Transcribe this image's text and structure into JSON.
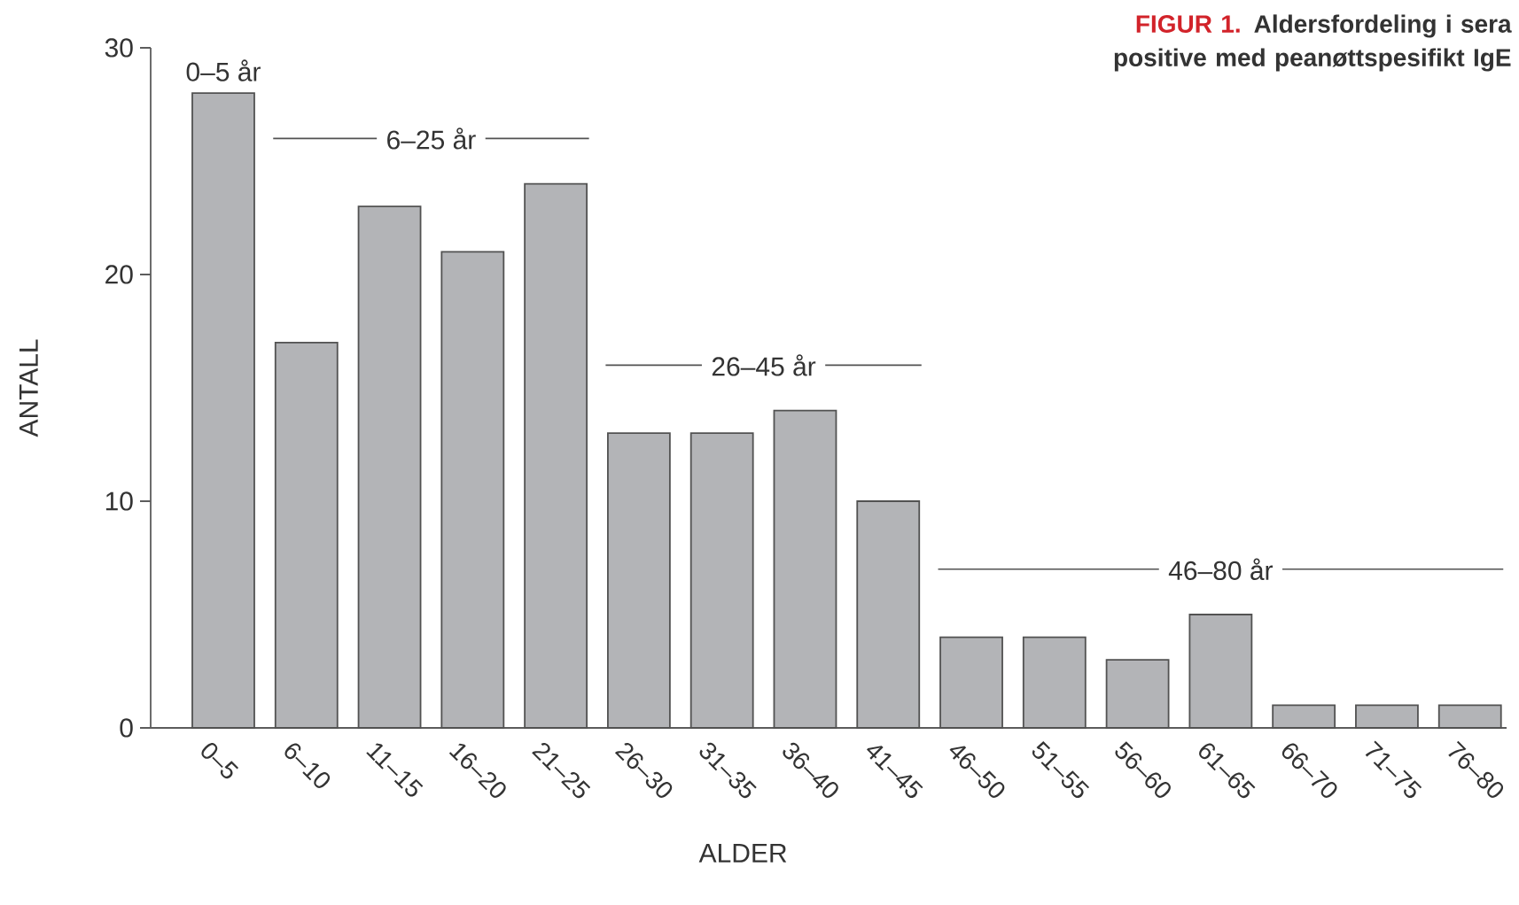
{
  "chart_data": {
    "type": "bar",
    "title": "FIGUR 1.",
    "subtitle": "Aldersfordeling i sera positive med peanøttspesifikt IgE",
    "xlabel": "ALDER",
    "ylabel": "ANTALL",
    "categories": [
      "0–5",
      "6–10",
      "11–15",
      "16–20",
      "21–25",
      "26–30",
      "31–35",
      "36–40",
      "41–45",
      "46–50",
      "51–55",
      "56–60",
      "61–65",
      "66–70",
      "71–75",
      "76–80"
    ],
    "values": [
      28,
      17,
      23,
      21,
      24,
      13,
      13,
      14,
      10,
      4,
      4,
      3,
      5,
      1,
      1,
      1
    ],
    "color": "#b3b4b7",
    "ylim": [
      0,
      30
    ],
    "yticks": [
      0,
      10,
      20,
      30
    ],
    "annotations": [
      "0–5 år",
      "6–25 år",
      "26–45 år",
      "46–80 år"
    ]
  }
}
